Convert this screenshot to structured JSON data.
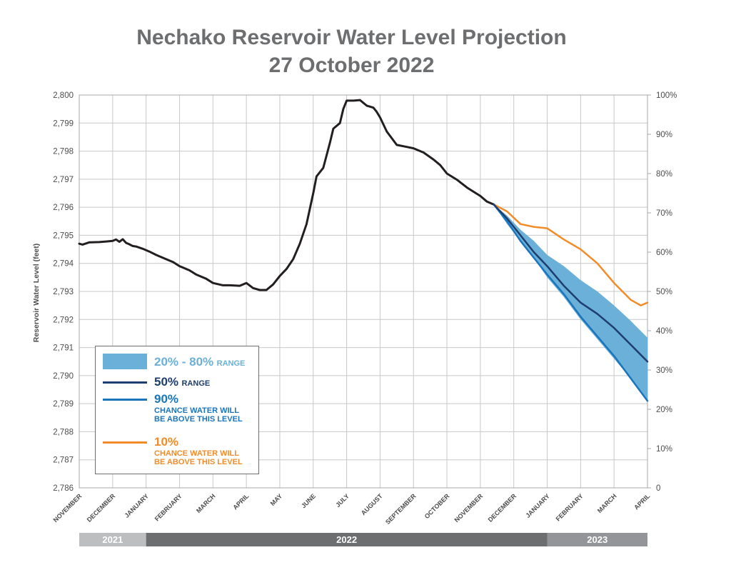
{
  "title_line1": "Nechako Reservoir Water Level Projection",
  "title_line2": "27 October 2022",
  "chart_data": {
    "type": "line",
    "ylabel": "Reservoir Water Level (feet)",
    "ylim": [
      2786,
      2800
    ],
    "y_ticks": [
      "2,786",
      "2,787",
      "2,788",
      "2,789",
      "2,790",
      "2,791",
      "2,792",
      "2,793",
      "2,794",
      "2,795",
      "2,796",
      "2,797",
      "2,798",
      "2,799",
      "2,800"
    ],
    "y2lim": [
      0,
      100
    ],
    "y2_ticks": [
      "0",
      "10%",
      "20%",
      "30%",
      "40%",
      "50%",
      "60%",
      "70%",
      "80%",
      "90%",
      "100%"
    ],
    "x_ticks": [
      "NOVEMBER",
      "DECEMBER",
      "JANUARY",
      "FEBRUARY",
      "MARCH",
      "APRIL",
      "MAY",
      "JUNE",
      "JULY",
      "AUGUST",
      "SEPTEMBER",
      "OCTOBER",
      "NOVEMBER",
      "DECEMBER",
      "JANUARY",
      "FEBRUARY",
      "MARCH",
      "APRIL"
    ],
    "x_range_months": [
      0,
      17
    ],
    "years": [
      {
        "label": "2021",
        "from": 0,
        "to": 2,
        "color": "#bcbec0"
      },
      {
        "label": "2022",
        "from": 2,
        "to": 14,
        "color": "#6d6e70"
      },
      {
        "label": "2023",
        "from": 14,
        "to": 17,
        "color": "#939598"
      }
    ],
    "grid": true,
    "legend_position": "bottom-left",
    "series": [
      {
        "name": "historical",
        "color": "#231f20",
        "x": [
          0,
          0.1,
          0.3,
          0.6,
          0.8,
          1.0,
          1.1,
          1.2,
          1.3,
          1.4,
          1.5,
          1.6,
          1.7,
          1.9,
          2.1,
          2.3,
          2.5,
          2.8,
          3.0,
          3.3,
          3.5,
          3.8,
          4.0,
          4.3,
          4.5,
          4.8,
          5.0,
          5.2,
          5.4,
          5.6,
          5.8,
          6.0,
          6.2,
          6.4,
          6.6,
          6.8,
          7.0,
          7.1,
          7.3,
          7.5,
          7.6,
          7.8,
          7.9,
          8.0,
          8.2,
          8.4,
          8.6,
          8.8,
          8.9,
          9.0,
          9.2,
          9.5,
          9.8,
          10.0,
          10.3,
          10.6,
          10.8,
          11.0,
          11.3,
          11.6,
          11.8,
          12.0,
          12.2,
          12.4
        ],
        "y": [
          2794.7,
          2794.67,
          2794.75,
          2794.76,
          2794.78,
          2794.8,
          2794.85,
          2794.77,
          2794.86,
          2794.73,
          2794.68,
          2794.62,
          2794.6,
          2794.52,
          2794.42,
          2794.3,
          2794.2,
          2794.05,
          2793.9,
          2793.75,
          2793.6,
          2793.45,
          2793.3,
          2793.22,
          2793.22,
          2793.2,
          2793.3,
          2793.12,
          2793.05,
          2793.05,
          2793.25,
          2793.55,
          2793.8,
          2794.15,
          2794.7,
          2795.4,
          2796.5,
          2797.1,
          2797.4,
          2798.3,
          2798.8,
          2799.0,
          2799.5,
          2799.8,
          2799.8,
          2799.82,
          2799.62,
          2799.55,
          2799.4,
          2799.2,
          2798.7,
          2798.22,
          2798.15,
          2798.1,
          2797.95,
          2797.7,
          2797.5,
          2797.2,
          2796.98,
          2796.7,
          2796.55,
          2796.4,
          2796.2,
          2796.1
        ]
      },
      {
        "name": "20% - 80% RANGE",
        "color": "#6ab0d8",
        "type": "band",
        "x": [
          12.4,
          12.8,
          13.2,
          13.6,
          14.0,
          14.5,
          15.0,
          15.5,
          16.0,
          16.5,
          17.0
        ],
        "upper": [
          2796.1,
          2795.7,
          2795.2,
          2794.8,
          2794.3,
          2793.9,
          2793.4,
          2793.0,
          2792.5,
          2791.95,
          2791.35
        ],
        "lower": [
          2796.1,
          2795.4,
          2794.8,
          2794.2,
          2793.5,
          2792.8,
          2792.0,
          2791.3,
          2790.6,
          2789.9,
          2789.1
        ]
      },
      {
        "name": "50% RANGE",
        "color": "#1d3e6e",
        "x": [
          12.4,
          12.8,
          13.2,
          13.6,
          14.0,
          14.5,
          15.0,
          15.5,
          16.0,
          16.5,
          17.0
        ],
        "y": [
          2796.1,
          2795.6,
          2795.0,
          2794.4,
          2793.9,
          2793.2,
          2792.6,
          2792.2,
          2791.7,
          2791.1,
          2790.5
        ]
      },
      {
        "name": "90%",
        "color": "#1a75bb",
        "x": [
          12.4,
          12.8,
          13.2,
          13.6,
          14.0,
          14.5,
          15.0,
          15.5,
          16.0,
          16.5,
          17.0
        ],
        "y": [
          2796.1,
          2795.5,
          2794.8,
          2794.2,
          2793.6,
          2792.9,
          2792.1,
          2791.4,
          2790.7,
          2789.9,
          2789.1
        ]
      },
      {
        "name": "10%",
        "color": "#f28c28",
        "x": [
          12.4,
          12.8,
          13.2,
          13.6,
          14.0,
          14.5,
          15.0,
          15.5,
          16.0,
          16.5,
          16.8,
          17.0
        ],
        "y": [
          2796.1,
          2795.85,
          2795.4,
          2795.3,
          2795.25,
          2794.85,
          2794.5,
          2794.0,
          2793.3,
          2792.7,
          2792.5,
          2792.6
        ]
      }
    ]
  },
  "legend": {
    "band": {
      "pct": "20% - 80%",
      "label": "RANGE"
    },
    "median": {
      "pct": "50%",
      "label": "RANGE"
    },
    "p90": {
      "pct": "90%",
      "line1": "CHANCE WATER WILL",
      "line2": "BE ABOVE THIS LEVEL"
    },
    "p10": {
      "pct": "10%",
      "line1": "CHANCE WATER WILL",
      "line2": "BE ABOVE THIS LEVEL"
    }
  }
}
